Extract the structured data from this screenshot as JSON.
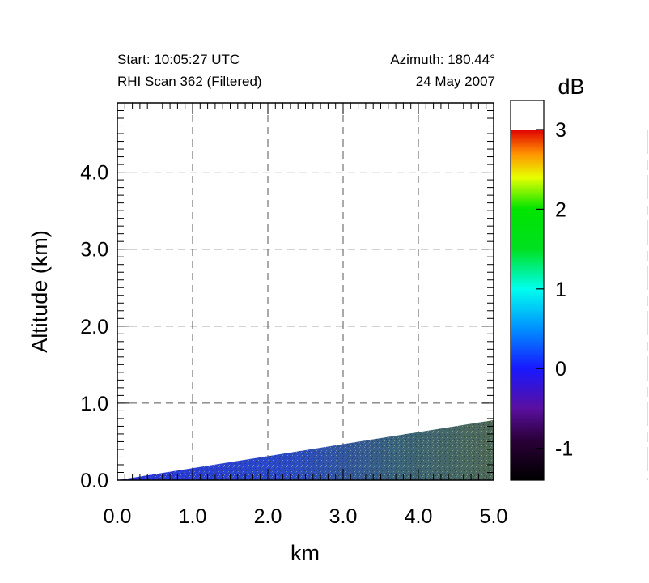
{
  "header": {
    "start": "Start: 10:05:27 UTC",
    "scan": "RHI Scan 362 (Filtered)",
    "azimuth": "Azimuth: 180.44°",
    "date": "24 May 2007"
  },
  "chart_data": {
    "type": "heatmap",
    "title": "",
    "xlabel": "km",
    "ylabel": "Altitude (km)",
    "xlim": [
      0.0,
      5.0
    ],
    "ylim": [
      0.0,
      4.9
    ],
    "grid": true,
    "x_ticks": [
      {
        "value": 0.0,
        "label": "0.0"
      },
      {
        "value": 1.0,
        "label": "1.0"
      },
      {
        "value": 2.0,
        "label": "2.0"
      },
      {
        "value": 3.0,
        "label": "3.0"
      },
      {
        "value": 4.0,
        "label": "4.0"
      },
      {
        "value": 5.0,
        "label": "5.0"
      }
    ],
    "y_ticks": [
      {
        "value": 0.0,
        "label": "0.0"
      },
      {
        "value": 1.0,
        "label": "1.0"
      },
      {
        "value": 2.0,
        "label": "2.0"
      },
      {
        "value": 3.0,
        "label": "3.0"
      },
      {
        "value": 4.0,
        "label": "4.0"
      }
    ],
    "scan_wedge": {
      "origin": [
        0.0,
        0.0
      ],
      "top_end": [
        5.0,
        0.78
      ],
      "bottom_end": [
        5.0,
        0.0
      ],
      "value_near": -0.1,
      "value_far": 0.6
    },
    "colorbar": {
      "label": "dB",
      "min": -1.4,
      "max": 3.0,
      "over_color": "#ffffff",
      "ticks": [
        {
          "value": -1,
          "label": "-1"
        },
        {
          "value": 0,
          "label": "0"
        },
        {
          "value": 1,
          "label": "1"
        },
        {
          "value": 2,
          "label": "2"
        },
        {
          "value": 3,
          "label": "3"
        }
      ],
      "stops": [
        {
          "value": -1.4,
          "color": "#000000"
        },
        {
          "value": -0.9,
          "color": "#2a0038"
        },
        {
          "value": -0.5,
          "color": "#5a0fa0"
        },
        {
          "value": 0.0,
          "color": "#1818ff"
        },
        {
          "value": 0.5,
          "color": "#0090ff"
        },
        {
          "value": 1.0,
          "color": "#00ffee"
        },
        {
          "value": 1.5,
          "color": "#00e020"
        },
        {
          "value": 2.0,
          "color": "#00e400"
        },
        {
          "value": 2.4,
          "color": "#e8ff00"
        },
        {
          "value": 2.7,
          "color": "#ff9000"
        },
        {
          "value": 3.0,
          "color": "#e00000"
        }
      ]
    }
  }
}
